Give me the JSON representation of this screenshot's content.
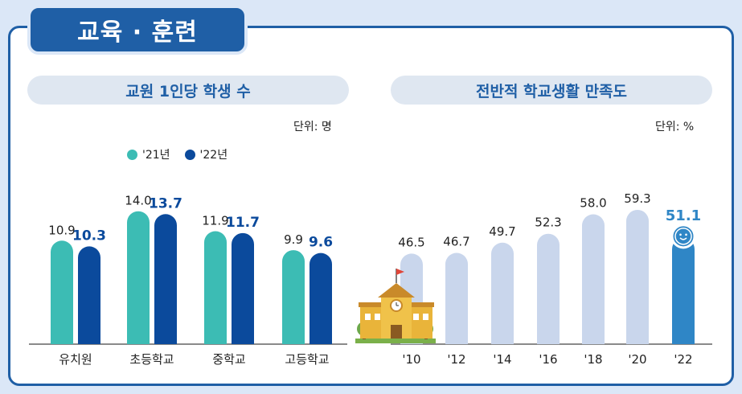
{
  "header": {
    "title": "교육 · 훈련"
  },
  "left_panel": {
    "title": "교원 1인당 학생 수",
    "unit": "단위: 명"
  },
  "right_panel": {
    "title": "전반적 학교생활 만족도",
    "unit": "단위: %"
  },
  "chart_data": [
    {
      "type": "bar",
      "categories": [
        "유치원",
        "초등학교",
        "중학교",
        "고등학교"
      ],
      "series": [
        {
          "name": "'21년",
          "values": [
            10.9,
            14.0,
            11.9,
            9.9
          ],
          "color": "#3cbcb4"
        },
        {
          "name": "'22년",
          "values": [
            10.3,
            13.7,
            11.7,
            9.6
          ],
          "color": "#0b4a9c"
        }
      ],
      "legend": "top-left",
      "grid": false
    },
    {
      "type": "bar",
      "categories": [
        "'10",
        "'12",
        "'14",
        "'16",
        "'18",
        "'20",
        "'22"
      ],
      "values": [
        46.5,
        46.7,
        49.7,
        52.3,
        58.0,
        59.3,
        51.1
      ],
      "color": "#c9d6ec",
      "highlight_color": "#2f86c6",
      "highlight_index": 6,
      "grid": false
    }
  ]
}
